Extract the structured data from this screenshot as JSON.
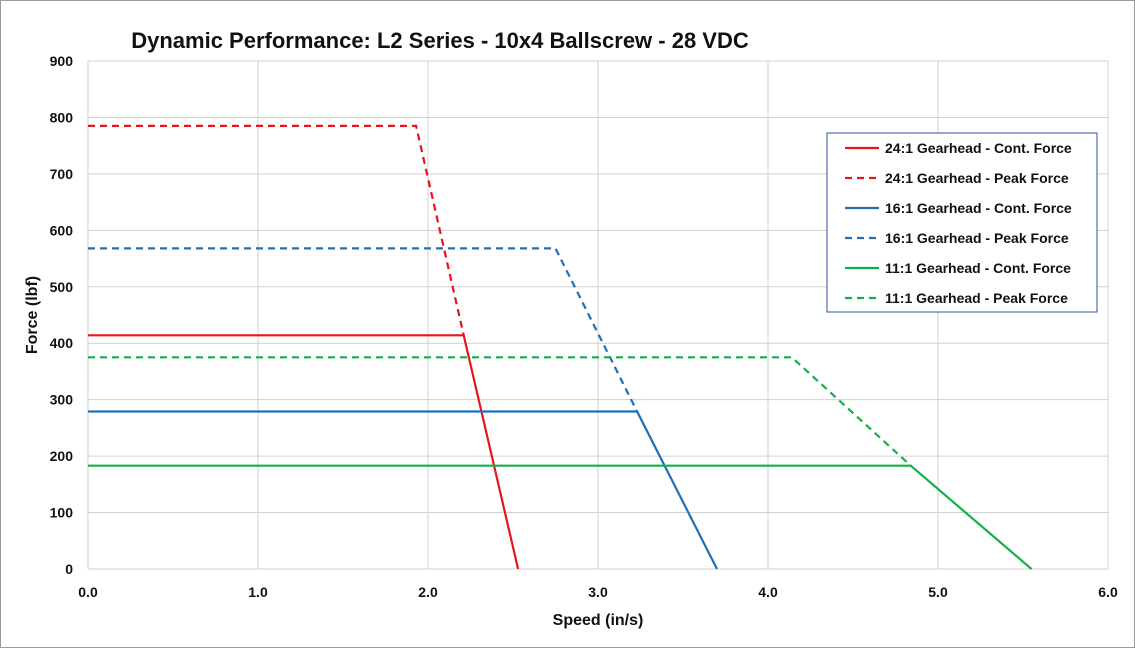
{
  "chart_data": {
    "type": "line",
    "title": "Dynamic Performance: L2 Series - 10x4 Ballscrew - 28 VDC",
    "xlabel": "Speed (in/s)",
    "ylabel": "Force (lbf)",
    "xlim": [
      0,
      6
    ],
    "ylim": [
      0,
      900
    ],
    "xticks": [
      0,
      1,
      2,
      3,
      4,
      5,
      6
    ],
    "xtick_labels": [
      "0.0",
      "1.0",
      "2.0",
      "3.0",
      "4.0",
      "5.0",
      "6.0"
    ],
    "yticks": [
      0,
      100,
      200,
      300,
      400,
      500,
      600,
      700,
      800,
      900
    ],
    "ytick_labels": [
      "0",
      "100",
      "200",
      "300",
      "400",
      "500",
      "600",
      "700",
      "800",
      "900"
    ],
    "grid": true,
    "legend_position": "top-right",
    "series": [
      {
        "name": "24:1 Gearhead - Cont. Force",
        "color": "#e8141c",
        "dash": "solid",
        "points": [
          [
            0,
            414
          ],
          [
            2.21,
            414
          ],
          [
            2.53,
            0
          ]
        ]
      },
      {
        "name": "24:1 Gearhead - Peak Force",
        "color": "#e8141c",
        "dash": "dashed",
        "points": [
          [
            0,
            785
          ],
          [
            1.93,
            785
          ],
          [
            2.21,
            414
          ]
        ]
      },
      {
        "name": "16:1 Gearhead - Cont. Force",
        "color": "#1f6fb8",
        "dash": "solid",
        "points": [
          [
            0,
            279
          ],
          [
            3.23,
            279
          ],
          [
            3.7,
            0
          ]
        ]
      },
      {
        "name": "16:1 Gearhead - Peak Force",
        "color": "#1f6fb8",
        "dash": "dashed",
        "points": [
          [
            0,
            568
          ],
          [
            2.75,
            568
          ],
          [
            3.23,
            279
          ]
        ]
      },
      {
        "name": "11:1 Gearhead - Cont. Force",
        "color": "#12b04a",
        "dash": "solid",
        "points": [
          [
            0,
            183
          ],
          [
            4.84,
            183
          ],
          [
            5.55,
            0
          ]
        ]
      },
      {
        "name": "11:1 Gearhead - Peak Force",
        "color": "#12b04a",
        "dash": "dashed",
        "points": [
          [
            0,
            375
          ],
          [
            4.14,
            375
          ],
          [
            4.84,
            183
          ]
        ]
      }
    ]
  },
  "colors": {
    "legend_border": "#2e4fa3",
    "grid": "#d0d0d0"
  }
}
